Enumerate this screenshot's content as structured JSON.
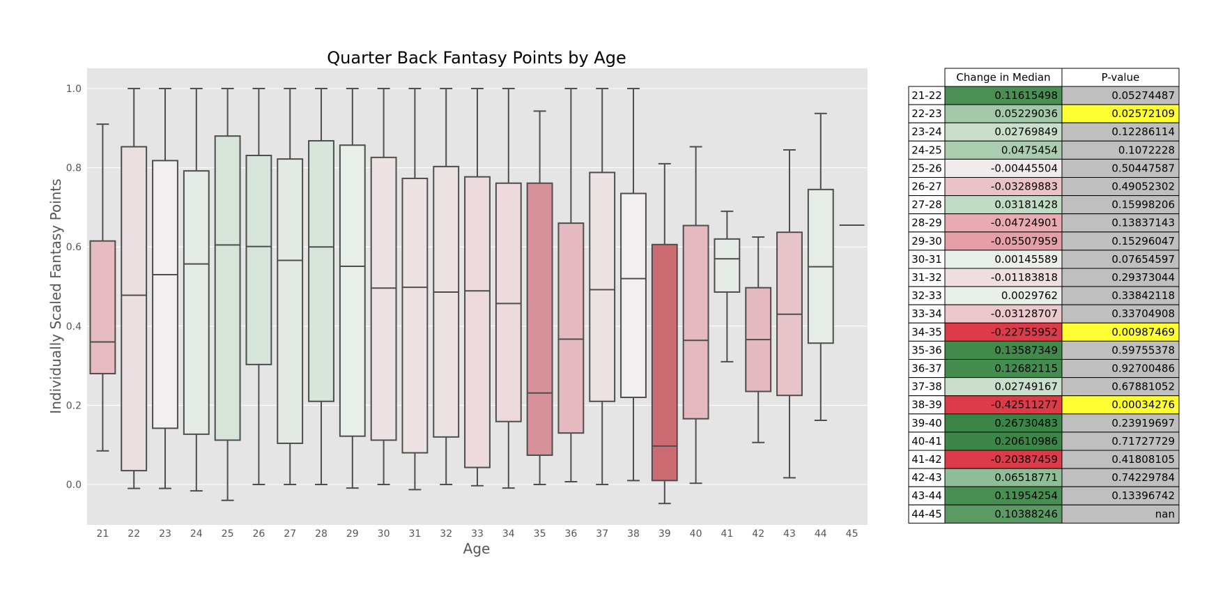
{
  "chart_data": {
    "type": "box",
    "title": "Quarter Back Fantasy Points by Age",
    "xlabel": "Age",
    "ylabel": "Individually Scaled Fantasy Points",
    "ylim": [
      -0.1,
      1.05
    ],
    "yticks": [
      "0.0",
      "0.2",
      "0.4",
      "0.6",
      "0.8",
      "1.0"
    ],
    "grid": true,
    "categories": [
      "21",
      "22",
      "23",
      "24",
      "25",
      "26",
      "27",
      "28",
      "29",
      "30",
      "31",
      "32",
      "33",
      "34",
      "35",
      "36",
      "37",
      "38",
      "39",
      "40",
      "41",
      "42",
      "43",
      "44",
      "45"
    ],
    "boxes": [
      {
        "min": 0.085,
        "q1": 0.28,
        "median": 0.36,
        "q3": 0.615,
        "max": 0.91,
        "color": "#e6bcc2"
      },
      {
        "min": -0.01,
        "q1": 0.035,
        "median": 0.478,
        "q3": 0.853,
        "max": 1.0,
        "color": "#ecdfe1"
      },
      {
        "min": -0.01,
        "q1": 0.142,
        "median": 0.53,
        "q3": 0.818,
        "max": 1.0,
        "color": "#f1eff0"
      },
      {
        "min": -0.016,
        "q1": 0.127,
        "median": 0.557,
        "q3": 0.792,
        "max": 1.0,
        "color": "#e5ebe6"
      },
      {
        "min": -0.04,
        "q1": 0.112,
        "median": 0.605,
        "q3": 0.88,
        "max": 1.0,
        "color": "#d6e4da"
      },
      {
        "min": 0.0,
        "q1": 0.303,
        "median": 0.601,
        "q3": 0.831,
        "max": 1.0,
        "color": "#d6e4da"
      },
      {
        "min": 0.0,
        "q1": 0.104,
        "median": 0.566,
        "q3": 0.822,
        "max": 1.0,
        "color": "#e3ebe4"
      },
      {
        "min": 0.0,
        "q1": 0.21,
        "median": 0.6,
        "q3": 0.868,
        "max": 1.0,
        "color": "#d8e5da"
      },
      {
        "min": -0.009,
        "q1": 0.122,
        "median": 0.551,
        "q3": 0.857,
        "max": 1.0,
        "color": "#e8eeea"
      },
      {
        "min": 0.0,
        "q1": 0.112,
        "median": 0.496,
        "q3": 0.826,
        "max": 1.0,
        "color": "#eee3e4"
      },
      {
        "min": -0.013,
        "q1": 0.08,
        "median": 0.498,
        "q3": 0.773,
        "max": 1.0,
        "color": "#eee3e4"
      },
      {
        "min": 0.0,
        "q1": 0.12,
        "median": 0.486,
        "q3": 0.803,
        "max": 1.0,
        "color": "#eee3e4"
      },
      {
        "min": -0.003,
        "q1": 0.043,
        "median": 0.489,
        "q3": 0.777,
        "max": 1.0,
        "color": "#ecdadd"
      },
      {
        "min": -0.009,
        "q1": 0.159,
        "median": 0.457,
        "q3": 0.761,
        "max": 1.0,
        "color": "#ecdadd"
      },
      {
        "min": 0.0,
        "q1": 0.074,
        "median": 0.231,
        "q3": 0.761,
        "max": 0.943,
        "color": "#d89299"
      },
      {
        "min": 0.007,
        "q1": 0.13,
        "median": 0.367,
        "q3": 0.66,
        "max": 1.0,
        "color": "#e4bac0"
      },
      {
        "min": 0.0,
        "q1": 0.21,
        "median": 0.492,
        "q3": 0.788,
        "max": 1.0,
        "color": "#eee3e4"
      },
      {
        "min": 0.01,
        "q1": 0.22,
        "median": 0.52,
        "q3": 0.735,
        "max": 1.0,
        "color": "#f1eff0"
      },
      {
        "min": -0.048,
        "q1": 0.01,
        "median": 0.097,
        "q3": 0.606,
        "max": 0.81,
        "color": "#cd6b73"
      },
      {
        "min": 0.003,
        "q1": 0.166,
        "median": 0.364,
        "q3": 0.654,
        "max": 0.853,
        "color": "#e4bac0"
      },
      {
        "min": 0.31,
        "q1": 0.486,
        "median": 0.57,
        "q3": 0.62,
        "max": 0.69,
        "color": "#e5ebe6"
      },
      {
        "min": 0.106,
        "q1": 0.235,
        "median": 0.366,
        "q3": 0.497,
        "max": 0.625,
        "color": "#e4bac0"
      },
      {
        "min": 0.017,
        "q1": 0.225,
        "median": 0.43,
        "q3": 0.637,
        "max": 0.845,
        "color": "#e6c4c9"
      },
      {
        "min": 0.162,
        "q1": 0.357,
        "median": 0.55,
        "q3": 0.745,
        "max": 0.937,
        "color": "#e6ece7"
      },
      {
        "min": 0.655,
        "q1": 0.655,
        "median": 0.655,
        "q3": 0.655,
        "max": 0.655,
        "color": "#e6ece7"
      }
    ]
  },
  "table": {
    "headers": [
      "Change in Median",
      "P-value"
    ],
    "rows": [
      {
        "label": "21-22",
        "change": "0.11615498",
        "pvalue": "0.05274487",
        "change_color": "#4b8f54",
        "p_color": "#bfbfbf"
      },
      {
        "label": "22-23",
        "change": "0.05229036",
        "pvalue": "0.02572109",
        "change_color": "#a4c9aa",
        "p_color": "#ffff33"
      },
      {
        "label": "23-24",
        "change": "0.02769849",
        "pvalue": "0.12286114",
        "change_color": "#c9dfcc",
        "p_color": "#bfbfbf"
      },
      {
        "label": "24-25",
        "change": "0.0475454",
        "pvalue": "0.1072228",
        "change_color": "#a9cdae",
        "p_color": "#bfbfbf"
      },
      {
        "label": "25-26",
        "change": "-0.00445504",
        "pvalue": "0.50447587",
        "change_color": "#f1ebec",
        "p_color": "#bfbfbf"
      },
      {
        "label": "26-27",
        "change": "-0.03289883",
        "pvalue": "0.49052302",
        "change_color": "#ebc3c7",
        "p_color": "#bfbfbf"
      },
      {
        "label": "27-28",
        "change": "0.03181428",
        "pvalue": "0.15998206",
        "change_color": "#c1dbc5",
        "p_color": "#bfbfbf"
      },
      {
        "label": "28-29",
        "change": "-0.04724901",
        "pvalue": "0.13837143",
        "change_color": "#e9aab1",
        "p_color": "#bfbfbf"
      },
      {
        "label": "29-30",
        "change": "-0.05507959",
        "pvalue": "0.15296047",
        "change_color": "#e69fa7",
        "p_color": "#bfbfbf"
      },
      {
        "label": "30-31",
        "change": "0.00145589",
        "pvalue": "0.07654597",
        "change_color": "#e9f0ea",
        "p_color": "#bfbfbf"
      },
      {
        "label": "31-32",
        "change": "-0.01183818",
        "pvalue": "0.29373044",
        "change_color": "#efdfe1",
        "p_color": "#bfbfbf"
      },
      {
        "label": "32-33",
        "change": "0.0029762",
        "pvalue": "0.33842118",
        "change_color": "#e9f0ea",
        "p_color": "#bfbfbf"
      },
      {
        "label": "33-34",
        "change": "-0.03128707",
        "pvalue": "0.33704908",
        "change_color": "#ecc7cb",
        "p_color": "#bfbfbf"
      },
      {
        "label": "34-35",
        "change": "-0.22755952",
        "pvalue": "0.00987469",
        "change_color": "#dc3c49",
        "p_color": "#ffff33"
      },
      {
        "label": "35-36",
        "change": "0.13587349",
        "pvalue": "0.59755378",
        "change_color": "#418a4c",
        "p_color": "#bfbfbf"
      },
      {
        "label": "36-37",
        "change": "0.12682115",
        "pvalue": "0.92700486",
        "change_color": "#458c4f",
        "p_color": "#bfbfbf"
      },
      {
        "label": "37-38",
        "change": "0.02749167",
        "pvalue": "0.67881052",
        "change_color": "#c9dfcc",
        "p_color": "#bfbfbf"
      },
      {
        "label": "38-39",
        "change": "-0.42511277",
        "pvalue": "0.00034276",
        "change_color": "#dc3c49",
        "p_color": "#ffff33"
      },
      {
        "label": "39-40",
        "change": "0.26730483",
        "pvalue": "0.23919697",
        "change_color": "#3b8646",
        "p_color": "#bfbfbf"
      },
      {
        "label": "40-41",
        "change": "0.20610986",
        "pvalue": "0.71727729",
        "change_color": "#3b8646",
        "p_color": "#bfbfbf"
      },
      {
        "label": "41-42",
        "change": "-0.20387459",
        "pvalue": "0.41808105",
        "change_color": "#dc3c49",
        "p_color": "#bfbfbf"
      },
      {
        "label": "42-43",
        "change": "0.06518771",
        "pvalue": "0.74229784",
        "change_color": "#8fbd97",
        "p_color": "#bfbfbf"
      },
      {
        "label": "43-44",
        "change": "0.11954254",
        "pvalue": "0.13396742",
        "change_color": "#498e52",
        "p_color": "#bfbfbf"
      },
      {
        "label": "44-45",
        "change": "0.10388246",
        "pvalue": "nan",
        "change_color": "#5b9a63",
        "p_color": "#bfbfbf"
      }
    ]
  }
}
